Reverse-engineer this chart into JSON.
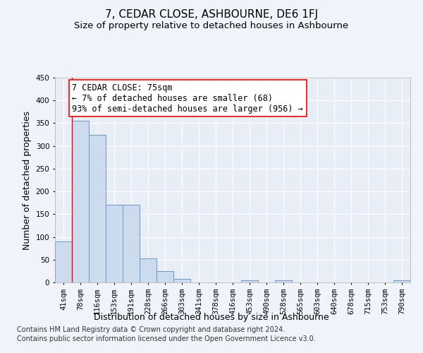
{
  "title": "7, CEDAR CLOSE, ASHBOURNE, DE6 1FJ",
  "subtitle": "Size of property relative to detached houses in Ashbourne",
  "xlabel": "Distribution of detached houses by size in Ashbourne",
  "ylabel": "Number of detached properties",
  "bar_labels": [
    "41sqm",
    "78sqm",
    "116sqm",
    "153sqm",
    "191sqm",
    "228sqm",
    "266sqm",
    "303sqm",
    "341sqm",
    "378sqm",
    "416sqm",
    "453sqm",
    "490sqm",
    "528sqm",
    "565sqm",
    "603sqm",
    "640sqm",
    "678sqm",
    "715sqm",
    "753sqm",
    "790sqm"
  ],
  "bar_values": [
    90,
    355,
    325,
    170,
    170,
    52,
    25,
    8,
    0,
    0,
    0,
    5,
    0,
    5,
    0,
    0,
    0,
    0,
    0,
    0,
    5
  ],
  "bar_color": "#ccdcee",
  "bar_edge_color": "#6699cc",
  "ylim": [
    0,
    450
  ],
  "yticks": [
    0,
    50,
    100,
    150,
    200,
    250,
    300,
    350,
    400,
    450
  ],
  "red_line_x": 0.5,
  "annotation_line1": "7 CEDAR CLOSE: 75sqm",
  "annotation_line2": "← 7% of detached houses are smaller (68)",
  "annotation_line3": "93% of semi-detached houses are larger (956) →",
  "footer_line1": "Contains HM Land Registry data © Crown copyright and database right 2024.",
  "footer_line2": "Contains public sector information licensed under the Open Government Licence v3.0.",
  "bg_color": "#f0f4fa",
  "plot_bg_color": "#e8eef8",
  "grid_color": "#ffffff",
  "title_fontsize": 11,
  "subtitle_fontsize": 9.5,
  "axis_label_fontsize": 9,
  "tick_fontsize": 7.5,
  "annotation_fontsize": 8.5,
  "footer_fontsize": 7
}
